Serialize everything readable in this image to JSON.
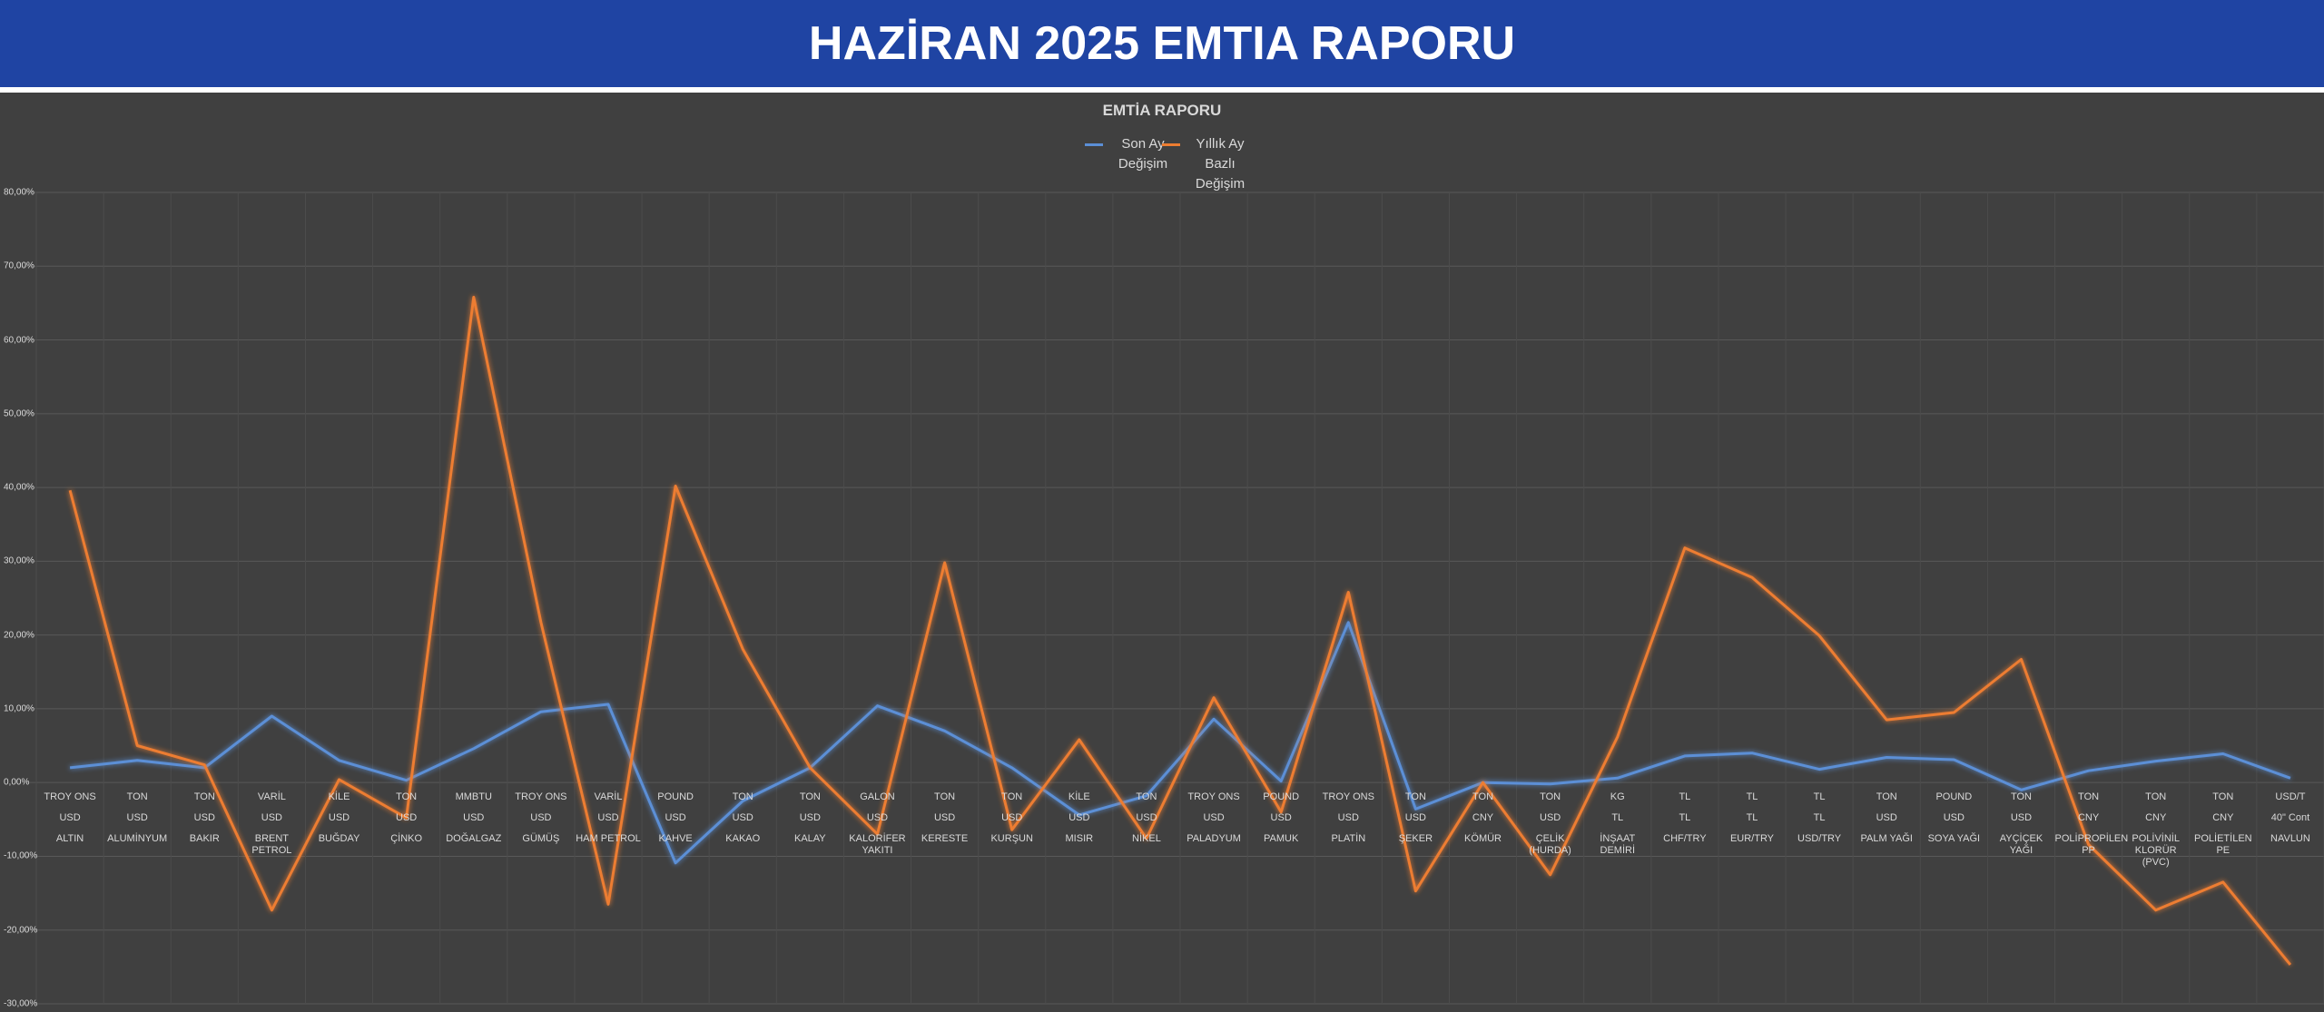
{
  "header": {
    "title": "HAZİRAN 2025 EMTIA RAPORU"
  },
  "chart_data": {
    "type": "line",
    "title": "EMTİA RAPORU",
    "categories": [
      [
        "TROY ONS",
        "USD",
        "ALTIN"
      ],
      [
        "TON",
        "USD",
        "ALUMİNYUM"
      ],
      [
        "TON",
        "USD",
        "BAKIR"
      ],
      [
        "VARİL",
        "USD",
        "BRENT PETROL"
      ],
      [
        "KİLE",
        "USD",
        "BUĞDAY"
      ],
      [
        "TON",
        "USD",
        "ÇİNKO"
      ],
      [
        "MMBTU",
        "USD",
        "DOĞALGAZ"
      ],
      [
        "TROY ONS",
        "USD",
        "GÜMÜŞ"
      ],
      [
        "VARİL",
        "USD",
        "HAM PETROL"
      ],
      [
        "POUND",
        "USD",
        "KAHVE"
      ],
      [
        "TON",
        "USD",
        "KAKAO"
      ],
      [
        "TON",
        "USD",
        "KALAY"
      ],
      [
        "GALON",
        "USD",
        "KALORİFER YAKITI"
      ],
      [
        "TON",
        "USD",
        "KERESTE"
      ],
      [
        "TON",
        "USD",
        "KURŞUN"
      ],
      [
        "KİLE",
        "USD",
        "MISIR"
      ],
      [
        "TON",
        "USD",
        "NİKEL"
      ],
      [
        "TROY ONS",
        "USD",
        "PALADYUM"
      ],
      [
        "POUND",
        "USD",
        "PAMUK"
      ],
      [
        "TROY ONS",
        "USD",
        "PLATİN"
      ],
      [
        "TON",
        "USD",
        "ŞEKER"
      ],
      [
        "TON",
        "CNY",
        "KÖMÜR"
      ],
      [
        "TON",
        "USD",
        "ÇELİK (HURDA)"
      ],
      [
        "KG",
        "TL",
        "İNŞAAT DEMİRİ"
      ],
      [
        "TL",
        "TL",
        "CHF/TRY"
      ],
      [
        "TL",
        "TL",
        "EUR/TRY"
      ],
      [
        "TL",
        "TL",
        "USD/TRY"
      ],
      [
        "TON",
        "USD",
        "PALM YAĞI"
      ],
      [
        "POUND",
        "USD",
        "SOYA YAĞI"
      ],
      [
        "TON",
        "USD",
        "AYÇİÇEK YAĞI"
      ],
      [
        "TON",
        "CNY",
        "POLİPROPİLEN PP"
      ],
      [
        "TON",
        "CNY",
        "POLİVİNİL KLORÜR (PVC)"
      ],
      [
        "TON",
        "CNY",
        "POLİETİLEN PE"
      ],
      [
        "USD/T",
        "40\" Cont",
        "NAVLUN"
      ]
    ],
    "series": [
      {
        "name": "Son Ay Değişim",
        "color": "#5b8fd6",
        "values": [
          2.0,
          3.0,
          2.0,
          9.0,
          3.0,
          0.3,
          4.6,
          9.6,
          10.6,
          -10.9,
          -2.5,
          2.0,
          10.4,
          7.0,
          2.0,
          -4.4,
          -1.8,
          8.6,
          0.2,
          21.7,
          -3.6,
          0.0,
          -0.2,
          0.6,
          3.6,
          4.0,
          1.8,
          3.4,
          3.1,
          -1.0,
          1.6,
          2.9,
          3.9,
          0.6
        ]
      },
      {
        "name": "Yıllık Ay Bazlı Değişim",
        "color": "#ed7d31",
        "values": [
          39.6,
          5.0,
          2.4,
          -17.3,
          0.4,
          -4.8,
          65.8,
          21.7,
          -16.5,
          40.2,
          18.1,
          2.0,
          -7.0,
          29.8,
          -6.4,
          5.8,
          -7.6,
          11.5,
          -4.0,
          25.8,
          -14.7,
          0.0,
          -12.5,
          6.2,
          31.8,
          27.8,
          19.9,
          8.5,
          9.5,
          16.7,
          -8.4,
          -17.3,
          -13.5,
          -24.7
        ]
      }
    ],
    "ylim": [
      -30,
      80
    ],
    "yticks": [
      {
        "value": -30,
        "label": "-30,00%"
      },
      {
        "value": -20,
        "label": "-20,00%"
      },
      {
        "value": -10,
        "label": "-10,00%"
      },
      {
        "value": 0,
        "label": "0,00%"
      },
      {
        "value": 10,
        "label": "10,00%"
      },
      {
        "value": 20,
        "label": "20,00%"
      },
      {
        "value": 30,
        "label": "30,00%"
      },
      {
        "value": 40,
        "label": "40,00%"
      },
      {
        "value": 50,
        "label": "50,00%"
      },
      {
        "value": 60,
        "label": "60,00%"
      },
      {
        "value": 70,
        "label": "70,00%"
      },
      {
        "value": 80,
        "label": "80,00%"
      }
    ],
    "grid": true
  }
}
